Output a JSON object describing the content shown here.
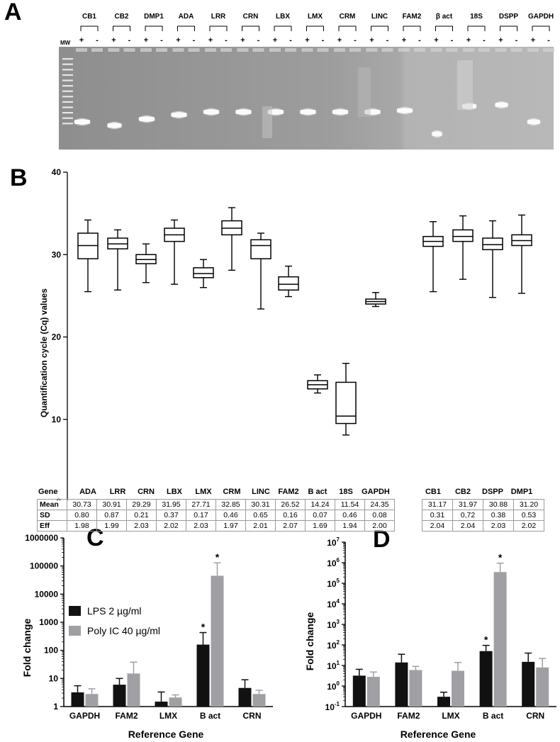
{
  "panels": {
    "a": "A",
    "b": "B",
    "c": "C",
    "d": "D"
  },
  "gel": {
    "mw_label": "MW",
    "genes": [
      "CB1",
      "CB2",
      "DMP1",
      "ADA",
      "LRR",
      "CRN",
      "LBX",
      "LMX",
      "CRM",
      "LINC",
      "FAM2",
      "β act",
      "18S",
      "DSPP",
      "GAPDH"
    ],
    "plus": "+",
    "minus": "-"
  },
  "table": {
    "row_labels": [
      "Gene",
      "Mean",
      "SD",
      "Eff"
    ],
    "left": [
      {
        "gene": "ADA",
        "mean": "30.73",
        "sd": "0.80",
        "eff": "1.98"
      },
      {
        "gene": "LRR",
        "mean": "30.91",
        "sd": "0.87",
        "eff": "1.99"
      },
      {
        "gene": "CRN",
        "mean": "29.29",
        "sd": "0.21",
        "eff": "2.03"
      },
      {
        "gene": "LBX",
        "mean": "31.95",
        "sd": "0.37",
        "eff": "2.02"
      },
      {
        "gene": "LMX",
        "mean": "27.71",
        "sd": "0.17",
        "eff": "2.03"
      },
      {
        "gene": "CRM",
        "mean": "32.85",
        "sd": "0.46",
        "eff": "1.97"
      },
      {
        "gene": "LINC",
        "mean": "30.31",
        "sd": "0.65",
        "eff": "2.01"
      },
      {
        "gene": "FAM2",
        "mean": "26.52",
        "sd": "0.16",
        "eff": "2.07"
      },
      {
        "gene": "B act",
        "mean": "14.24",
        "sd": "0.07",
        "eff": "1.69"
      },
      {
        "gene": "18S",
        "mean": "11.54",
        "sd": "0.46",
        "eff": "1.94"
      },
      {
        "gene": "GAPDH",
        "mean": "24.35",
        "sd": "0.08",
        "eff": "2.00"
      }
    ],
    "right": [
      {
        "gene": "CB1",
        "mean": "31.17",
        "sd": "0.31",
        "eff": "2.04"
      },
      {
        "gene": "CB2",
        "mean": "31.97",
        "sd": "0,72",
        "eff": "2.04"
      },
      {
        "gene": "DSPP",
        "mean": "30.88",
        "sd": "0.38",
        "eff": "2.03"
      },
      {
        "gene": "DMP1",
        "mean": "31.20",
        "sd": "0.53",
        "eff": "2.02"
      }
    ]
  },
  "colors": {
    "lps": "#111111",
    "polyic": "#a0a0a4",
    "gel_bg": "#9a9a9a"
  },
  "chart_data": [
    {
      "id": "B",
      "type": "box",
      "ylabel": "Quantification cycle (Cq) values",
      "ylim": [
        0,
        40
      ],
      "yticks": [
        0,
        10,
        20,
        30,
        40
      ],
      "categories": [
        "ADA",
        "LRR",
        "CRN",
        "LBX",
        "LMX",
        "CRM",
        "LINC",
        "FAM2",
        "B act",
        "18S",
        "GAPDH",
        "CB1",
        "CB2",
        "DSPP",
        "DMP1"
      ],
      "boxes": [
        {
          "min": 25.5,
          "q1": 29.5,
          "median": 31.1,
          "q3": 32.6,
          "max": 34.2
        },
        {
          "min": 25.7,
          "q1": 30.7,
          "median": 31.3,
          "q3": 32.0,
          "max": 33.0
        },
        {
          "min": 26.6,
          "q1": 28.9,
          "median": 29.4,
          "q3": 30.0,
          "max": 31.3
        },
        {
          "min": 26.4,
          "q1": 31.6,
          "median": 32.4,
          "q3": 33.2,
          "max": 34.2
        },
        {
          "min": 26.0,
          "q1": 27.2,
          "median": 27.7,
          "q3": 28.4,
          "max": 29.4
        },
        {
          "min": 28.1,
          "q1": 32.4,
          "median": 33.2,
          "q3": 34.1,
          "max": 35.7
        },
        {
          "min": 23.4,
          "q1": 29.5,
          "median": 31.1,
          "q3": 31.8,
          "max": 32.6
        },
        {
          "min": 24.9,
          "q1": 25.7,
          "median": 26.4,
          "q3": 27.3,
          "max": 28.6
        },
        {
          "min": 13.2,
          "q1": 13.7,
          "median": 14.2,
          "q3": 14.7,
          "max": 15.4
        },
        {
          "min": 8.1,
          "q1": 9.5,
          "median": 10.4,
          "q3": 14.5,
          "max": 16.8
        },
        {
          "min": 23.7,
          "q1": 24.0,
          "median": 24.3,
          "q3": 24.6,
          "max": 25.4
        },
        {
          "min": 25.5,
          "q1": 31.0,
          "median": 31.6,
          "q3": 32.2,
          "max": 34.0
        },
        {
          "min": 27.0,
          "q1": 31.6,
          "median": 32.2,
          "q3": 33.0,
          "max": 34.7
        },
        {
          "min": 24.8,
          "q1": 30.6,
          "median": 31.2,
          "q3": 32.0,
          "max": 34.1
        },
        {
          "min": 25.3,
          "q1": 31.1,
          "median": 31.7,
          "q3": 32.4,
          "max": 34.8
        }
      ]
    },
    {
      "id": "C",
      "type": "bar",
      "scale": "log",
      "xlabel": "Reference Gene",
      "ylabel": "Fold change",
      "ylim": [
        1,
        1000000
      ],
      "ytick_labels": [
        "1",
        "10",
        "100",
        "1000",
        "10000",
        "100000",
        "1000000"
      ],
      "categories": [
        "GAPDH",
        "FAM2",
        "LMX",
        "B act",
        "CRN"
      ],
      "legend_position": "upper-left",
      "series": [
        {
          "name": "LPS 2 µg/ml",
          "values": [
            3.2,
            6.0,
            1.5,
            160,
            4.6
          ],
          "errors": [
            5.5,
            10.0,
            3.3,
            430,
            9.0
          ]
        },
        {
          "name": "Poly IC 40 µg/ml",
          "values": [
            2.8,
            15,
            2.1,
            45000,
            2.8
          ],
          "errors": [
            4.3,
            38,
            2.6,
            130000,
            3.8
          ]
        }
      ],
      "significance": [
        "",
        "",
        "",
        "*",
        ""
      ],
      "significance_2": [
        "",
        "",
        "",
        "*",
        ""
      ]
    },
    {
      "id": "D",
      "type": "bar",
      "scale": "log",
      "xlabel": "Reference Gene",
      "ylabel": "Fold change",
      "ylim": [
        0.1,
        10000000
      ],
      "ytick_base": "10",
      "ytick_exponents": [
        "-1",
        "0",
        "1",
        "2",
        "3",
        "4",
        "5",
        "6",
        "7"
      ],
      "categories": [
        "GAPDH",
        "FAM2",
        "LMX",
        "B act",
        "CRN"
      ],
      "series": [
        {
          "name": "LPS 2 µg/ml",
          "values": [
            3.2,
            14,
            0.3,
            50,
            15
          ],
          "errors": [
            6.5,
            35,
            0.5,
            95,
            40
          ]
        },
        {
          "name": "Poly IC 40 µg/ml",
          "values": [
            2.8,
            6.0,
            5.5,
            350000,
            8.0
          ],
          "errors": [
            4.8,
            9.0,
            14,
            950000,
            22
          ]
        }
      ],
      "significance": [
        "",
        "",
        "",
        "*",
        ""
      ],
      "significance_2": [
        "",
        "",
        "",
        "*",
        ""
      ]
    }
  ]
}
